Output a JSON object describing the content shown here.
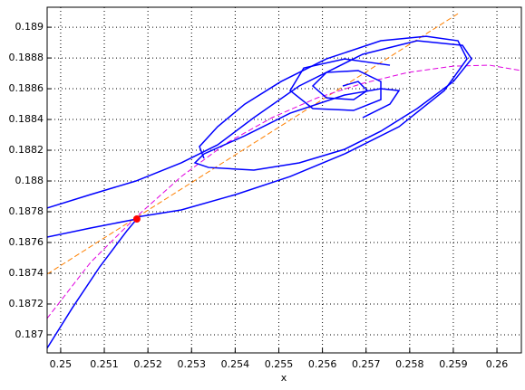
{
  "chart_data": {
    "type": "line",
    "xlabel": "x",
    "xlim": [
      0.24969,
      0.26056
    ],
    "ylim": [
      0.186882,
      0.18913
    ],
    "xticks": [
      0.25,
      0.251,
      0.252,
      0.253,
      0.254,
      0.255,
      0.256,
      0.257,
      0.258,
      0.259,
      0.26
    ],
    "yticks": [
      0.187,
      0.1872,
      0.1874,
      0.1876,
      0.1878,
      0.188,
      0.1882,
      0.1884,
      0.1886,
      0.1888,
      0.189
    ],
    "grid": true,
    "series": [
      {
        "color": "#ff8000",
        "dash": true,
        "x": [
          0.249688,
          0.259106
        ],
        "y": [
          0.187394,
          0.189088
        ]
      },
      {
        "color": "#e000e0",
        "dash": true,
        "x": [
          0.249688,
          0.250686,
          0.251726,
          0.252765,
          0.253805,
          0.254844,
          0.255884,
          0.256923,
          0.257963,
          0.259002,
          0.259834,
          0.260561
        ],
        "y": [
          0.187106,
          0.187471,
          0.187765,
          0.188029,
          0.188247,
          0.188412,
          0.188541,
          0.188635,
          0.188706,
          0.188747,
          0.188753,
          0.188718
        ]
      },
      {
        "color": "#0000ff",
        "dash": false,
        "x": [
          0.249688,
          0.250686,
          0.251726,
          0.252765,
          0.253597,
          0.254428,
          0.255468,
          0.256923,
          0.25817,
          0.25921,
          0.259418,
          0.259002,
          0.25817,
          0.257339,
          0.256507,
          0.255468,
          0.254428,
          0.253389,
          0.253077,
          0.253285,
          0.25422,
          0.25526,
          0.256507,
          0.257339,
          0.257755,
          0.257547,
          0.256923
        ],
        "y": [
          0.187824,
          0.187912,
          0.188,
          0.188118,
          0.188235,
          0.188412,
          0.188618,
          0.188824,
          0.188912,
          0.188882,
          0.188794,
          0.188647,
          0.188471,
          0.188324,
          0.188206,
          0.188118,
          0.188071,
          0.188088,
          0.188118,
          0.188176,
          0.188294,
          0.188441,
          0.188559,
          0.1886,
          0.188588,
          0.1885,
          0.188412
        ]
      },
      {
        "color": "#0000ff",
        "dash": false,
        "x": [
          0.251726,
          0.252765,
          0.254012,
          0.25526,
          0.256507,
          0.257755,
          0.258794,
          0.259314,
          0.259106,
          0.258378,
          0.257339,
          0.256091,
          0.255052,
          0.25422,
          0.253597,
          0.253181,
          0.253285
        ],
        "y": [
          0.187765,
          0.187812,
          0.187912,
          0.188029,
          0.188176,
          0.188353,
          0.188588,
          0.188794,
          0.188912,
          0.188941,
          0.188912,
          0.188794,
          0.188647,
          0.1885,
          0.188353,
          0.188224,
          0.188147
        ]
      },
      {
        "color": "#0000ff",
        "dash": false,
        "x": [
          0.249688,
          0.25027,
          0.250894,
          0.251518,
          0.251746
        ],
        "y": [
          0.186912,
          0.187176,
          0.187441,
          0.187676,
          0.187753
        ]
      },
      {
        "color": "#0000ff",
        "dash": false,
        "x": [
          0.249688,
          0.250686,
          0.251746
        ],
        "y": [
          0.187635,
          0.187694,
          0.187753
        ]
      },
      {
        "color": "#0000ff",
        "dash": false,
        "x": [
          0.256466,
          0.256819,
          0.257027,
          0.256715,
          0.256091,
          0.25578,
          0.256091,
          0.256819,
          0.257339,
          0.257339,
          0.256715,
          0.25578,
          0.25526,
          0.255572,
          0.256507,
          0.257547
        ],
        "y": [
          0.188618,
          0.188647,
          0.188588,
          0.188529,
          0.188541,
          0.188618,
          0.188706,
          0.188718,
          0.188647,
          0.188529,
          0.188459,
          0.188471,
          0.188588,
          0.188735,
          0.188794,
          0.188753
        ]
      },
      {
        "color": "#ff0000",
        "marker": true,
        "x": [
          0.251746
        ],
        "y": [
          0.187753
        ]
      }
    ]
  }
}
